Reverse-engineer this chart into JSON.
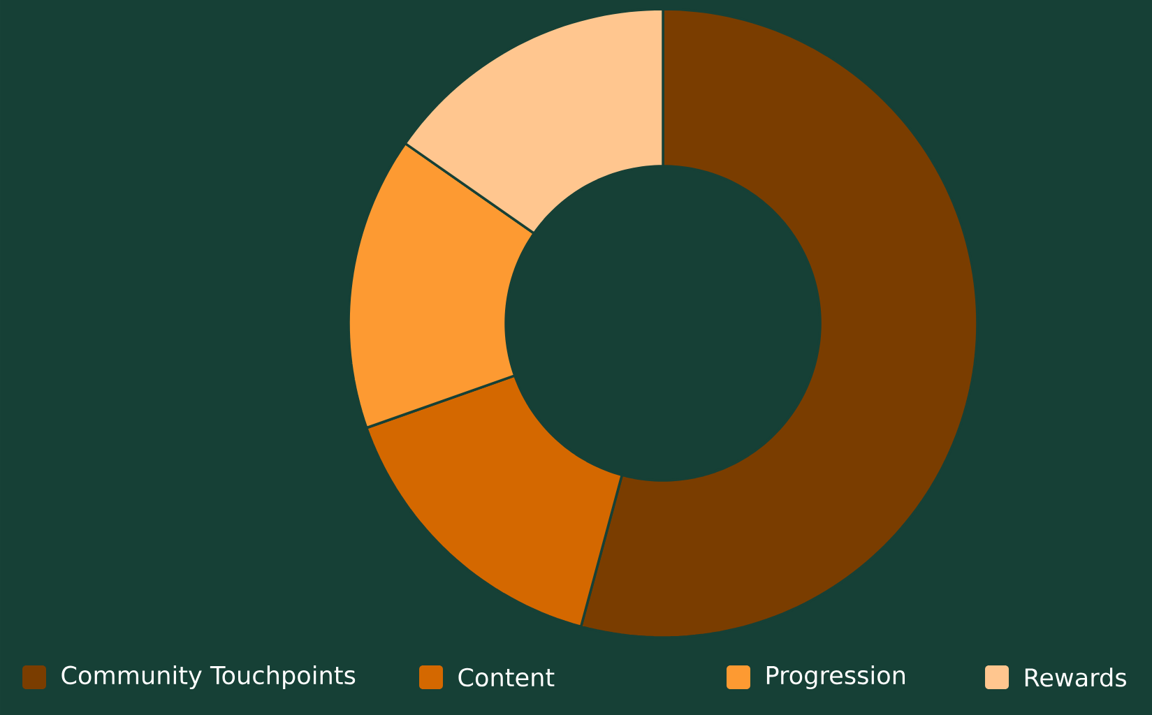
{
  "chart_data": {
    "type": "donut",
    "categories": [
      "Community Touchpoints",
      "Content",
      "Progression",
      "Rewards"
    ],
    "values": [
      54.2,
      15.4,
      15.1,
      15.3
    ],
    "colors": [
      "#7a3d00",
      "#d46800",
      "#fd9a32",
      "#ffc68f"
    ],
    "legend": "bottom"
  }
}
